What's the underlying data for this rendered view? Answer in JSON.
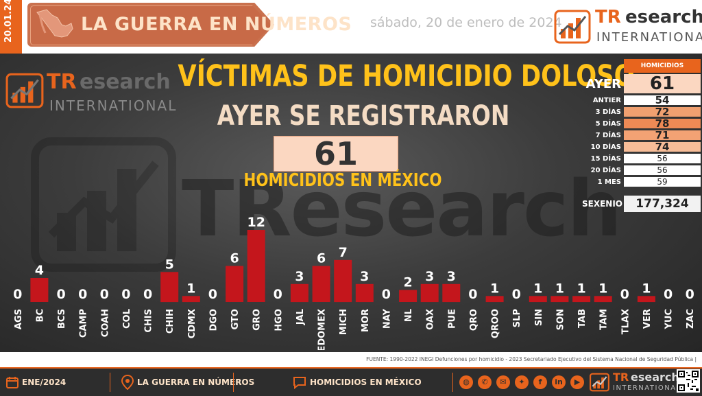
{
  "header": {
    "date_stamp": "20.01.24",
    "title": "LA GUERRA EN NÚMEROS",
    "date": "sábado, 20 de enero de 2024",
    "logo_tr": "TR",
    "logo_research": "esearch",
    "logo_intl": "INTERNATIONAL"
  },
  "main": {
    "title": "VÍCTIMAS DE HOMICIDIO DOLOSO",
    "subtitle": "AYER SE REGISTRARON",
    "total": "61",
    "caption": "HOMICIDIOS EN MÉXICO",
    "watermark": "TResearch"
  },
  "stats": {
    "header": "HOMICIDIOS",
    "rows": [
      {
        "label": "AYER",
        "value": "61"
      },
      {
        "label": "ANTIER",
        "value": "54"
      },
      {
        "label": "3 DÍAS",
        "value": "72"
      },
      {
        "label": "5 DÍAS",
        "value": "78"
      },
      {
        "label": "7 DÍAS",
        "value": "71"
      },
      {
        "label": "10 DÍAS",
        "value": "74"
      },
      {
        "label": "15 DÍAS",
        "value": "56"
      },
      {
        "label": "20 DÍAS",
        "value": "56"
      },
      {
        "label": "1 MES",
        "value": "59"
      }
    ],
    "sexenio_label": "SEXENIO",
    "sexenio_value": "177,324"
  },
  "chart_data": {
    "type": "bar",
    "categories": [
      "AGS",
      "BC",
      "BCS",
      "CAMP",
      "COAH",
      "COL",
      "CHIS",
      "CHIH",
      "CDMX",
      "DGO",
      "GTO",
      "GRO",
      "HGO",
      "JAL",
      "EDOMEX",
      "MICH",
      "MOR",
      "NAY",
      "NL",
      "OAX",
      "PUE",
      "QRO",
      "QROO",
      "SLP",
      "SIN",
      "SON",
      "TAB",
      "TAM",
      "TLAX",
      "VER",
      "YUC",
      "ZAC"
    ],
    "values": [
      0,
      4,
      0,
      0,
      0,
      0,
      0,
      5,
      1,
      0,
      6,
      12,
      0,
      3,
      6,
      7,
      3,
      0,
      2,
      3,
      3,
      0,
      1,
      0,
      1,
      1,
      1,
      1,
      0,
      1,
      0,
      0
    ],
    "ylim": [
      0,
      12
    ],
    "colors": {
      "bar": "#c4161c",
      "label": "#ffffff"
    }
  },
  "source": "FUENTE: 1990-2022 INEGI Defunciones por homicidio - 2023 Secretariado Ejecutivo del Sistema Nacional de Seguridad Pública |",
  "footer": {
    "month": "ENE/2024",
    "section": "LA GUERRA EN NÚMEROS",
    "topic": "HOMICIDIOS EN MÉXICO",
    "social_icons": [
      "globe-icon",
      "whatsapp-icon",
      "email-icon",
      "twitter-icon",
      "facebook-icon",
      "linkedin-icon",
      "youtube-icon"
    ]
  }
}
